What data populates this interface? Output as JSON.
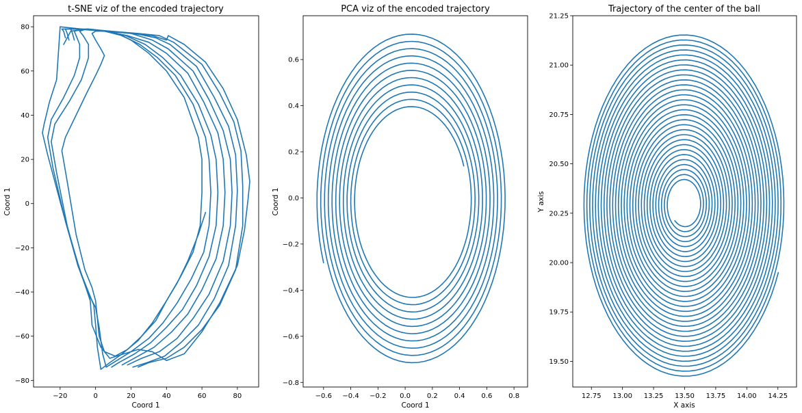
{
  "style": {
    "line_color": "#1f77b4"
  },
  "chart_data": [
    {
      "type": "line",
      "title": "t-SNE viz of the encoded trajectory",
      "xlabel": "Coord 1",
      "ylabel": "Coord 1",
      "xlim": [
        -35,
        92
      ],
      "ylim": [
        -83,
        85
      ],
      "xticks": [
        -20,
        0,
        20,
        40,
        60,
        80
      ],
      "yticks": [
        -80,
        -60,
        -40,
        -20,
        0,
        20,
        40,
        60,
        80
      ],
      "xtick_labels": [
        "−20",
        "0",
        "20",
        "40",
        "60",
        "80"
      ],
      "ytick_labels": [
        "−80",
        "−60",
        "−40",
        "−20",
        "0",
        "20",
        "40",
        "60",
        "80"
      ],
      "grid": false,
      "series": [
        {
          "points": [
            [
              62,
              -4
            ],
            [
              58,
              -14
            ],
            [
              52,
              -26
            ],
            [
              46,
              -36
            ],
            [
              40,
              -44
            ],
            [
              34,
              -53
            ],
            [
              26,
              -60
            ],
            [
              18,
              -66
            ],
            [
              11,
              -69
            ],
            [
              5,
              -67
            ],
            [
              2,
              -60
            ],
            [
              1,
              -52
            ],
            [
              0,
              -44
            ],
            [
              -2,
              -38
            ],
            [
              -6,
              -30
            ],
            [
              -11,
              -14
            ],
            [
              -16,
              10
            ],
            [
              -19,
              24
            ],
            [
              -17,
              30
            ],
            [
              -11,
              40
            ],
            [
              -5,
              50
            ],
            [
              0,
              58
            ],
            [
              3,
              63
            ],
            [
              5,
              67
            ]
          ]
        },
        {
          "points": [
            [
              5,
              67
            ],
            [
              3,
              70
            ],
            [
              0,
              74
            ],
            [
              -2,
              77
            ],
            [
              0,
              78
            ],
            [
              5,
              78
            ],
            [
              12,
              77
            ],
            [
              20,
              74
            ],
            [
              30,
              68
            ],
            [
              40,
              60
            ],
            [
              50,
              48
            ],
            [
              58,
              30
            ],
            [
              60,
              20
            ],
            [
              60,
              5
            ],
            [
              59,
              -10
            ],
            [
              55,
              -22
            ],
            [
              48,
              -33
            ],
            [
              40,
              -44
            ],
            [
              32,
              -54
            ],
            [
              24,
              -62
            ],
            [
              15,
              -68
            ],
            [
              8,
              -72
            ],
            [
              3,
              -75
            ],
            [
              1,
              -65
            ],
            [
              0,
              -55
            ],
            [
              -1,
              -46
            ],
            [
              -4,
              -40
            ],
            [
              -10,
              -28
            ],
            [
              -16,
              -10
            ],
            [
              -22,
              14
            ],
            [
              -25,
              28
            ],
            [
              -23,
              36
            ],
            [
              -15,
              46
            ],
            [
              -8,
              56
            ],
            [
              -4,
              66
            ],
            [
              -4,
              72
            ]
          ]
        },
        {
          "points": [
            [
              -4,
              72
            ],
            [
              -7,
              76
            ],
            [
              -9,
              78
            ],
            [
              -5,
              79
            ],
            [
              5,
              78
            ],
            [
              15,
              76
            ],
            [
              25,
              72
            ],
            [
              35,
              66
            ],
            [
              45,
              58
            ],
            [
              55,
              45
            ],
            [
              62,
              30
            ],
            [
              64,
              20
            ],
            [
              65,
              5
            ],
            [
              64,
              -10
            ],
            [
              61,
              -22
            ],
            [
              54,
              -34
            ],
            [
              46,
              -45
            ],
            [
              38,
              -54
            ],
            [
              30,
              -61
            ],
            [
              20,
              -67
            ],
            [
              12,
              -71
            ],
            [
              6,
              -74
            ],
            [
              4,
              -68
            ],
            [
              2,
              -56
            ],
            [
              0,
              -47
            ],
            [
              -4,
              -41
            ],
            [
              -10,
              -28
            ],
            [
              -17,
              -8
            ],
            [
              -24,
              16
            ],
            [
              -27,
              30
            ],
            [
              -25,
              38
            ],
            [
              -18,
              48
            ],
            [
              -12,
              58
            ],
            [
              -9,
              66
            ],
            [
              -9,
              72
            ]
          ]
        },
        {
          "points": [
            [
              -9,
              72
            ],
            [
              -11,
              76
            ],
            [
              -12,
              78
            ],
            [
              -6,
              79
            ],
            [
              5,
              78
            ],
            [
              17,
              76
            ],
            [
              28,
              72
            ],
            [
              38,
              66
            ],
            [
              48,
              58
            ],
            [
              58,
              45
            ],
            [
              65,
              31
            ],
            [
              68,
              20
            ],
            [
              69,
              5
            ],
            [
              68,
              -10
            ],
            [
              64,
              -24
            ],
            [
              57,
              -37
            ],
            [
              49,
              -48
            ],
            [
              40,
              -56
            ],
            [
              31,
              -63
            ],
            [
              22,
              -68
            ],
            [
              13,
              -72
            ],
            [
              9,
              -74
            ]
          ]
        },
        {
          "points": [
            [
              -12,
              74
            ],
            [
              -13,
              77
            ],
            [
              -14,
              79
            ],
            [
              -8,
              79
            ],
            [
              6,
              78
            ],
            [
              18,
              76
            ],
            [
              30,
              73
            ],
            [
              40,
              68
            ],
            [
              52,
              59
            ],
            [
              61,
              46
            ],
            [
              69,
              32
            ],
            [
              72,
              20
            ],
            [
              73,
              5
            ],
            [
              72,
              -10
            ],
            [
              68,
              -25
            ],
            [
              60,
              -39
            ],
            [
              52,
              -50
            ],
            [
              43,
              -58
            ],
            [
              33,
              -65
            ],
            [
              24,
              -69
            ],
            [
              15,
              -73
            ]
          ]
        },
        {
          "points": [
            [
              -15,
              74
            ],
            [
              -16,
              77
            ],
            [
              -17,
              79
            ],
            [
              -10,
              79
            ],
            [
              6,
              78
            ],
            [
              20,
              77
            ],
            [
              32,
              74
            ],
            [
              41,
              70
            ],
            [
              55,
              60
            ],
            [
              64,
              47
            ],
            [
              72,
              33
            ],
            [
              76,
              20
            ],
            [
              77,
              5
            ],
            [
              76,
              -10
            ],
            [
              72,
              -26
            ],
            [
              64,
              -41
            ],
            [
              55,
              -52
            ],
            [
              46,
              -61
            ],
            [
              36,
              -67
            ],
            [
              26,
              -70
            ],
            [
              18,
              -73
            ]
          ]
        },
        {
          "points": [
            [
              -17,
              75
            ],
            [
              -18,
              78
            ],
            [
              -19,
              79
            ],
            [
              -12,
              79
            ],
            [
              6,
              78
            ],
            [
              22,
              77
            ],
            [
              34,
              75
            ],
            [
              42,
              72
            ],
            [
              57,
              62
            ],
            [
              67,
              48
            ],
            [
              75,
              35
            ],
            [
              79,
              22
            ],
            [
              80,
              6
            ],
            [
              79,
              -10
            ],
            [
              75,
              -28
            ],
            [
              67,
              -43
            ],
            [
              58,
              -55
            ],
            [
              48,
              -63
            ],
            [
              39,
              -69
            ],
            [
              29,
              -72
            ],
            [
              21,
              -74
            ]
          ]
        },
        {
          "points": [
            [
              -20,
              80
            ],
            [
              -8,
              79
            ],
            [
              8,
              78
            ],
            [
              24,
              77
            ],
            [
              36,
              76
            ],
            [
              44,
              73
            ],
            [
              60,
              63
            ],
            [
              70,
              50
            ],
            [
              78,
              37
            ],
            [
              82,
              24
            ],
            [
              83,
              8
            ],
            [
              83,
              -10
            ],
            [
              79,
              -30
            ],
            [
              70,
              -46
            ],
            [
              60,
              -57
            ],
            [
              50,
              -65
            ],
            [
              40,
              -70
            ],
            [
              30,
              -72
            ],
            [
              24,
              -74
            ]
          ]
        },
        {
          "points": [
            [
              -20,
              80
            ],
            [
              -22,
              56
            ],
            [
              -26,
              46
            ],
            [
              -29,
              36
            ],
            [
              -30,
              32
            ],
            [
              -27,
              22
            ],
            [
              -18,
              -5
            ],
            [
              -10,
              -27
            ],
            [
              -3,
              -44
            ],
            [
              -2,
              -55
            ],
            [
              3,
              -65
            ],
            [
              8,
              -70
            ],
            [
              16,
              -68
            ],
            [
              24,
              -66
            ],
            [
              32,
              -67
            ],
            [
              40,
              -71
            ],
            [
              50,
              -68
            ],
            [
              60,
              -58
            ],
            [
              70,
              -45
            ],
            [
              80,
              -28
            ],
            [
              84,
              -12
            ],
            [
              86,
              2
            ],
            [
              87,
              10
            ],
            [
              85,
              22
            ],
            [
              80,
              38
            ],
            [
              72,
              52
            ],
            [
              62,
              64
            ],
            [
              50,
              72
            ],
            [
              41,
              76
            ],
            [
              40,
              74
            ],
            [
              32,
              76
            ],
            [
              20,
              77
            ],
            [
              8,
              78
            ],
            [
              -4,
              79
            ],
            [
              -14,
              78
            ],
            [
              -18,
              72
            ]
          ]
        }
      ]
    },
    {
      "type": "line",
      "title": "PCA viz of the encoded trajectory",
      "xlabel": "Coord 1",
      "ylabel": "Coord 1",
      "xlim": [
        -0.75,
        0.9
      ],
      "ylim": [
        -0.82,
        0.79
      ],
      "xticks": [
        -0.6,
        -0.4,
        -0.2,
        0.0,
        0.2,
        0.4,
        0.6,
        0.8
      ],
      "yticks": [
        -0.8,
        -0.6,
        -0.4,
        -0.2,
        0.0,
        0.2,
        0.4,
        0.6
      ],
      "xtick_labels": [
        "−0.6",
        "−0.4",
        "−0.2",
        "0.0",
        "0.2",
        "0.4",
        "0.6",
        "0.8"
      ],
      "ytick_labels": [
        "−0.8",
        "−0.6",
        "−0.4",
        "−0.2",
        "0.0",
        "0.2",
        "0.4",
        "0.6"
      ],
      "grid": false,
      "spiral": {
        "center": [
          0.05,
          -0.01
        ],
        "semi_axis_x_start": 0.41,
        "semi_axis_x_end": 0.7,
        "semi_axis_y_start": 0.4,
        "semi_axis_y_end": 0.73,
        "turns": 10.5,
        "start_point": [
          0.46,
          0.15
        ],
        "end_point": [
          -0.38,
          -0.71
        ]
      }
    },
    {
      "type": "line",
      "title": "Trajectory of the center of the ball",
      "xlabel": "X axis",
      "ylabel": "Y axis",
      "xlim": [
        12.6,
        14.4
      ],
      "ylim": [
        19.37,
        21.25
      ],
      "xticks": [
        12.75,
        13.0,
        13.25,
        13.5,
        13.75,
        14.0,
        14.25
      ],
      "yticks": [
        19.5,
        19.75,
        20.0,
        20.25,
        20.5,
        20.75,
        21.0,
        21.25
      ],
      "xtick_labels": [
        "12.75",
        "13.00",
        "13.25",
        "13.50",
        "13.75",
        "14.00",
        "14.25"
      ],
      "ytick_labels": [
        "19.50",
        "19.75",
        "20.00",
        "20.25",
        "20.50",
        "20.75",
        "21.00",
        "21.25"
      ],
      "grid": false,
      "spiral": {
        "center": [
          13.5,
          20.295
        ],
        "semi_axis_x_start": 0.12,
        "semi_axis_x_end": 0.82,
        "semi_axis_y_start": 0.11,
        "semi_axis_y_end": 0.875,
        "turns": 30.3,
        "start_point": [
          13.39,
          20.18
        ],
        "end_point": [
          13.96,
          19.49
        ]
      }
    }
  ]
}
